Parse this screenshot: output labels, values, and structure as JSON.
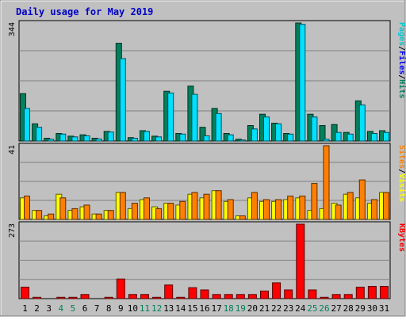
{
  "title": "Daily usage for May 2019",
  "colors": {
    "background": "#c0c0c0",
    "hits": "#00805c",
    "files": "#00e0ff",
    "pages": "#00c8d0",
    "visits": "#ffff00",
    "sites": "#ff8000",
    "kbytes": "#ff0000",
    "title": "#0000ff",
    "weekend": "#00805c"
  },
  "chart_data": {
    "type": "bar",
    "categories": [
      "1",
      "2",
      "3",
      "4",
      "5",
      "6",
      "7",
      "8",
      "9",
      "10",
      "11",
      "12",
      "13",
      "14",
      "15",
      "16",
      "17",
      "18",
      "19",
      "20",
      "21",
      "22",
      "23",
      "24",
      "25",
      "26",
      "27",
      "28",
      "29",
      "30",
      "31"
    ],
    "weekend_days": [
      "4",
      "5",
      "11",
      "12",
      "18",
      "19",
      "25",
      "26"
    ],
    "panels": [
      {
        "name": "hits-files-pages",
        "ymax": 344,
        "ymax_label": "344",
        "legend": [
          {
            "label": "Pages",
            "color": "#00c8d0"
          },
          {
            "label": "/",
            "color": "#000000"
          },
          {
            "label": "Files",
            "color": "#0000ff"
          },
          {
            "label": "/",
            "color": "#000000"
          },
          {
            "label": "Hits",
            "color": "#00805c"
          }
        ],
        "series": [
          {
            "name": "Hits",
            "color": "#00805c",
            "values": [
              138,
              50,
              8,
              22,
              14,
              18,
              8,
              28,
              285,
              10,
              30,
              14,
              145,
              22,
              160,
              40,
              95,
              22,
              5,
              45,
              78,
              52,
              22,
              344,
              78,
              45,
              48,
              25,
              117,
              28,
              30
            ]
          },
          {
            "name": "Files",
            "color": "#00e0ff",
            "values": [
              95,
              40,
              5,
              20,
              12,
              15,
              6,
              26,
              240,
              8,
              28,
              12,
              140,
              20,
              136,
              15,
              80,
              18,
              3,
              35,
              70,
              50,
              20,
              340,
              70,
              5,
              25,
              20,
              105,
              22,
              25
            ]
          },
          {
            "name": "Pages",
            "color": "#00c8d0",
            "values": [
              0,
              0,
              0,
              0,
              0,
              0,
              0,
              0,
              0,
              0,
              0,
              0,
              0,
              0,
              0,
              0,
              0,
              0,
              0,
              0,
              0,
              0,
              0,
              0,
              0,
              0,
              0,
              0,
              0,
              0,
              0
            ]
          }
        ]
      },
      {
        "name": "visits-sites",
        "ymax": 41,
        "ymax_label": "41",
        "legend": [
          {
            "label": "Sites",
            "color": "#ff8000"
          },
          {
            "label": "/",
            "color": "#000000"
          },
          {
            "label": "Visits",
            "color": "#ffff00"
          }
        ],
        "series": [
          {
            "name": "Visits",
            "color": "#ffff00",
            "values": [
              12,
              5,
              2,
              14,
              5,
              7,
              3,
              5,
              15,
              6,
              11,
              7,
              9,
              8,
              14,
              12,
              16,
              10,
              2,
              12,
              10,
              10,
              11,
              12,
              5,
              6,
              9,
              14,
              12,
              9,
              15
            ]
          },
          {
            "name": "Sites",
            "color": "#ff8000",
            "values": [
              13,
              5,
              3,
              12,
              6,
              8,
              3,
              5,
              15,
              9,
              12,
              6,
              9,
              10,
              15,
              14,
              16,
              11,
              2,
              15,
              11,
              11,
              13,
              13,
              20,
              41,
              8,
              15,
              22,
              11,
              15
            ]
          }
        ]
      },
      {
        "name": "kbytes",
        "ymax": 273,
        "ymax_label": "273",
        "legend": [
          {
            "label": "KBytes",
            "color": "#ff0000"
          }
        ],
        "series": [
          {
            "name": "KBytes",
            "color": "#ff0000",
            "values": [
              42,
              5,
              0,
              5,
              5,
              15,
              0,
              5,
              72,
              15,
              15,
              5,
              50,
              5,
              40,
              32,
              15,
              15,
              15,
              15,
              28,
              58,
              32,
              273,
              32,
              5,
              15,
              15,
              42,
              45,
              45
            ]
          }
        ]
      }
    ]
  }
}
